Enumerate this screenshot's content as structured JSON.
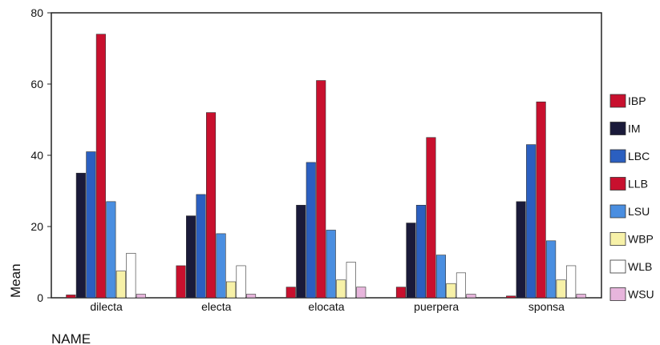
{
  "chart_data": {
    "type": "bar",
    "title": "",
    "xlabel": "NAME",
    "ylabel": "Mean",
    "ylim": [
      0,
      80
    ],
    "yticks": [
      0,
      20,
      40,
      60,
      80
    ],
    "grid": false,
    "legend_position": "right",
    "categories": [
      "dilecta",
      "electa",
      "elocata",
      "puerpera",
      "sponsa"
    ],
    "series": [
      {
        "name": "IBP",
        "color": "#c8102e",
        "values": [
          0.8,
          9,
          3,
          3,
          0.5
        ]
      },
      {
        "name": "IM",
        "color": "#1a1a3a",
        "values": [
          35,
          23,
          26,
          21,
          27
        ]
      },
      {
        "name": "LBC",
        "color": "#2b5fc0",
        "values": [
          41,
          29,
          38,
          26,
          43
        ]
      },
      {
        "name": "LLB",
        "color": "#c8102e",
        "values": [
          74,
          52,
          61,
          45,
          55
        ]
      },
      {
        "name": "LSU",
        "color": "#4a8ee0",
        "values": [
          27,
          18,
          19,
          12,
          16
        ]
      },
      {
        "name": "WBP",
        "color": "#f7f1a8",
        "values": [
          7.5,
          4.5,
          5,
          4,
          5
        ]
      },
      {
        "name": "WLB",
        "color": "#ffffff",
        "values": [
          12.5,
          9,
          10,
          7,
          9
        ]
      },
      {
        "name": "WSU",
        "color": "#e7b5dc",
        "values": [
          1,
          1,
          3,
          1,
          1
        ]
      }
    ]
  }
}
